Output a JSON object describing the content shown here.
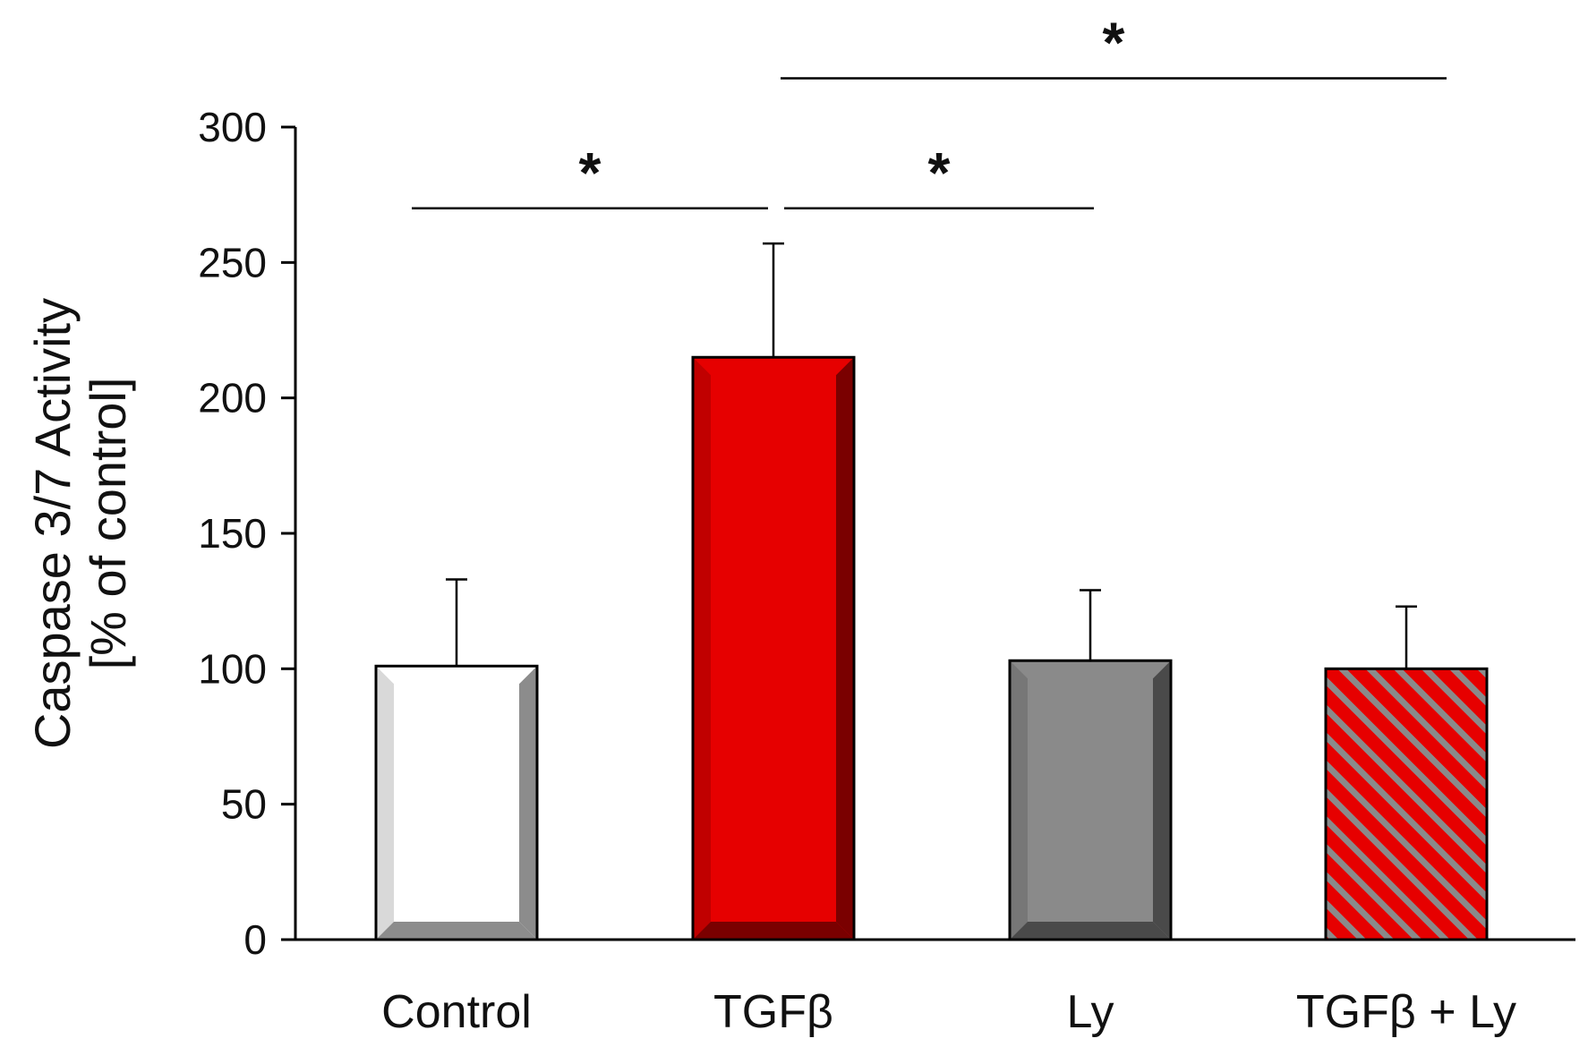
{
  "chart_data": {
    "type": "bar",
    "title": "",
    "ylabel_line1": "Caspase 3/7 Activity",
    "ylabel_line2": "[% of control]",
    "xlabel": "",
    "ylim": [
      0,
      300
    ],
    "yticks": [
      0,
      50,
      100,
      150,
      200,
      250,
      300
    ],
    "ytick_labels": [
      "0",
      "50",
      "100",
      "150",
      "200",
      "250",
      "300"
    ],
    "categories": [
      "Control",
      "TGFβ",
      "Ly",
      "TGFβ + Ly"
    ],
    "values": [
      101,
      215,
      103,
      100
    ],
    "errors": [
      32,
      42,
      26,
      23
    ],
    "bar_styles": [
      {
        "fill": "#ffffff",
        "light": "#d9d9d9",
        "dark": "#8c8c8c",
        "pattern": "none"
      },
      {
        "fill": "#e60000",
        "light": "#c00000",
        "dark": "#7a0000",
        "pattern": "none"
      },
      {
        "fill": "#8a8a8a",
        "light": "#777777",
        "dark": "#4a4a4a",
        "pattern": "none"
      },
      {
        "fill": "#e60000",
        "light": "#e60000",
        "dark": "#8a8a8a",
        "pattern": "hatch"
      }
    ],
    "significance": [
      {
        "from": 0,
        "to": 1,
        "label": "*",
        "level": 270
      },
      {
        "from": 1,
        "to": 2,
        "label": "*",
        "level": 270
      },
      {
        "from": 1,
        "to": 3,
        "label": "*",
        "level": 318
      }
    ]
  }
}
